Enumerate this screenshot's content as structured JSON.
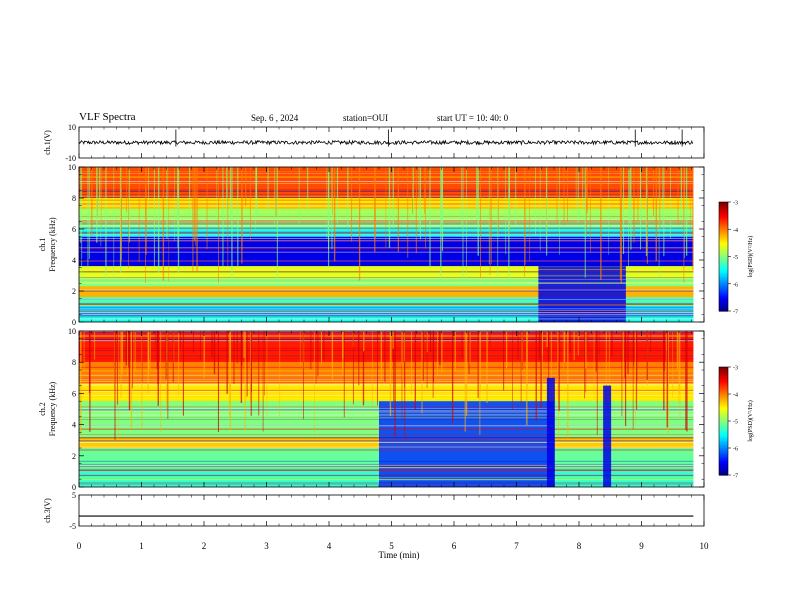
{
  "header": {
    "title": "VLF Spectra",
    "date": "Sep. 6 , 2024",
    "station": "station=OUI",
    "start": "start  UT =   10: 40: 0"
  },
  "chart_data": [
    {
      "type": "line",
      "panel": "ch1-waveform",
      "ylabel": "ch.1(V)",
      "ylim": [
        -10,
        10
      ],
      "yticks": [
        "10",
        "-10"
      ],
      "xlim": [
        0,
        10
      ],
      "series": [
        {
          "baseline": 0,
          "amplitude_approx": 1.2,
          "spikes_approx": 4
        }
      ]
    },
    {
      "type": "heatmap",
      "panel": "ch1-spectrogram",
      "ylabel": "ch.1 Frequency (kHz)",
      "ylim": [
        0,
        10
      ],
      "yticks": [
        "0",
        "2",
        "4",
        "6",
        "8",
        "10"
      ],
      "xlim": [
        0,
        9.83
      ],
      "colorbar": {
        "label": "log(PSD)(V²/Hz)",
        "range": [
          -7,
          -3
        ],
        "ticks": [
          "-3",
          "-4",
          "-5",
          "-6",
          "-7"
        ]
      },
      "bands": [
        {
          "f": [
            8.0,
            10.0
          ],
          "level": -3.8
        },
        {
          "f": [
            7.3,
            8.0
          ],
          "level": -4.4
        },
        {
          "f": [
            6.1,
            7.3
          ],
          "level": -4.9
        },
        {
          "f": [
            5.5,
            6.1
          ],
          "level": -5.4
        },
        {
          "f": [
            3.6,
            5.5
          ],
          "level": -6.6
        },
        {
          "f": [
            2.8,
            3.6
          ],
          "level": -4.6
        },
        {
          "f": [
            2.3,
            2.8
          ],
          "level": -5.0
        },
        {
          "f": [
            1.6,
            2.3
          ],
          "level": -4.2
        },
        {
          "f": [
            1.0,
            1.6
          ],
          "level": -5.2
        },
        {
          "f": [
            0.3,
            1.0
          ],
          "level": -5.8
        },
        {
          "f": [
            0.0,
            0.3
          ],
          "level": -5.4
        }
      ],
      "quiet_region": {
        "t": [
          7.35,
          8.75
        ],
        "f": [
          0.0,
          3.6
        ],
        "level": -6.6
      }
    },
    {
      "type": "heatmap",
      "panel": "ch2-spectrogram",
      "ylabel": "ch.2 Frequency (kHz)",
      "ylim": [
        0,
        10
      ],
      "yticks": [
        "0",
        "2",
        "4",
        "6",
        "8",
        "10"
      ],
      "xlim": [
        0,
        9.83
      ],
      "colorbar": {
        "label": "log(PSD)(V²/Hz)",
        "range": [
          -7,
          -3
        ],
        "ticks": [
          "-3",
          "-4",
          "-5",
          "-6",
          "-7"
        ]
      },
      "bands": [
        {
          "f": [
            8.0,
            10.0
          ],
          "level": -3.6
        },
        {
          "f": [
            6.6,
            8.0
          ],
          "level": -4.0
        },
        {
          "f": [
            5.5,
            6.6
          ],
          "level": -4.4
        },
        {
          "f": [
            3.2,
            5.5
          ],
          "level": -5.0
        },
        {
          "f": [
            2.5,
            3.2
          ],
          "level": -4.3
        },
        {
          "f": [
            1.5,
            2.5
          ],
          "level": -5.1
        },
        {
          "f": [
            0.0,
            1.5
          ],
          "level": -5.3
        }
      ],
      "quiet_region": {
        "t": [
          4.8,
          7.6
        ],
        "f": [
          0.0,
          5.5
        ],
        "level": -6.3
      },
      "dark_streaks": [
        {
          "t": 7.55,
          "f": [
            0,
            7.0
          ]
        },
        {
          "t": 8.45,
          "f": [
            0,
            6.5
          ]
        }
      ]
    },
    {
      "type": "line",
      "panel": "ch3-waveform",
      "ylabel": "ch.3(V)",
      "ylim": [
        -5,
        5
      ],
      "yticks": [
        "5",
        "-5"
      ],
      "xlim": [
        0,
        10
      ],
      "series": [
        {
          "constant": -1.8
        }
      ]
    }
  ],
  "xaxis": {
    "label": "Time  (min)",
    "ticks": [
      "0",
      "1",
      "2",
      "3",
      "4",
      "5",
      "6",
      "7",
      "8",
      "9",
      "10"
    ]
  }
}
